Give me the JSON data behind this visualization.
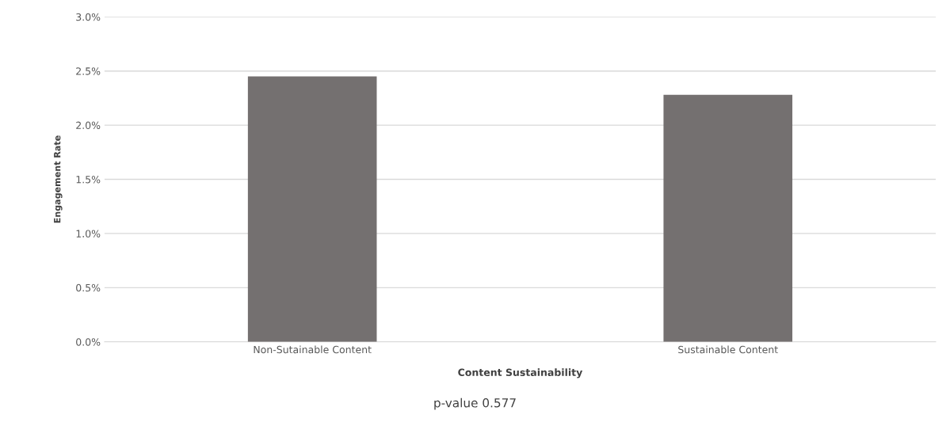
{
  "chart_data": {
    "type": "bar",
    "xlabel": "Content Sustainability",
    "ylabel": "Engagement Rate",
    "categories": [
      "Non-Sutainable Content",
      "Sustainable Content"
    ],
    "values": [
      2.45,
      2.28
    ],
    "color": "#747070",
    "ylim": [
      0,
      3
    ],
    "yticks": [
      {
        "value": 0,
        "label": "0.0%"
      },
      {
        "value": 0.5,
        "label": "0.5%"
      },
      {
        "value": 1,
        "label": "1.0%"
      },
      {
        "value": 1.5,
        "label": "1.5%"
      },
      {
        "value": 2,
        "label": "2.0%"
      },
      {
        "value": 2.5,
        "label": "2.5%"
      },
      {
        "value": 3,
        "label": "3.0%"
      }
    ],
    "grid": "y",
    "legend": false,
    "annotations": [
      "p-value 0.577"
    ]
  }
}
